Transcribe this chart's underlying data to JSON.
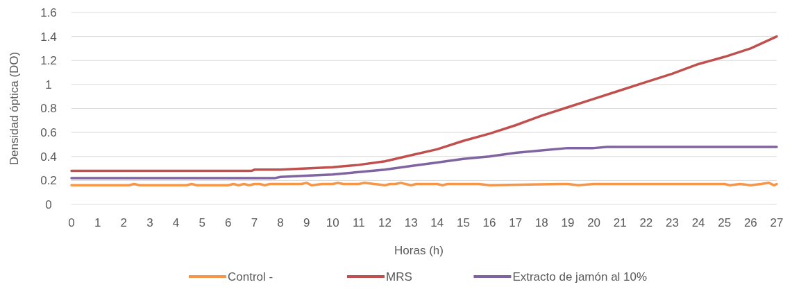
{
  "chart_data": {
    "type": "line",
    "xlabel": "Horas (h)",
    "ylabel": "Densidad óptica (DO)",
    "xlim": [
      0,
      27
    ],
    "xticks": [
      0,
      1,
      2,
      3,
      4,
      5,
      6,
      7,
      8,
      9,
      10,
      11,
      12,
      13,
      14,
      15,
      16,
      17,
      18,
      19,
      20,
      21,
      22,
      23,
      24,
      25,
      26,
      27
    ],
    "ylim": [
      0,
      1.6
    ],
    "yticks": [
      0,
      0.2,
      0.4,
      0.6,
      0.8,
      1,
      1.2,
      1.4,
      1.6
    ],
    "grid": "y",
    "legend": "bottom",
    "marker": "none",
    "line_style": "solid",
    "series": [
      {
        "name": "Control -",
        "color": "#f79646",
        "x": [
          0,
          2.2,
          2.4,
          2.6,
          4.4,
          4.6,
          4.8,
          6,
          6.2,
          6.4,
          6.6,
          6.8,
          7,
          7.2,
          7.4,
          7.6,
          8,
          8.8,
          9,
          9.2,
          9.6,
          10,
          10.2,
          10.4,
          11,
          11.2,
          11.6,
          12,
          12.2,
          12.4,
          12.6,
          13,
          13.2,
          13.5,
          14,
          14.2,
          14.4,
          15.4,
          15.6,
          16,
          18.8,
          19,
          19.4,
          20,
          20.2,
          24.8,
          25,
          25.2,
          25.6,
          26,
          26.4,
          26.7,
          26.9,
          27
        ],
        "values": [
          0.16,
          0.16,
          0.17,
          0.16,
          0.16,
          0.17,
          0.16,
          0.16,
          0.17,
          0.16,
          0.17,
          0.16,
          0.17,
          0.17,
          0.16,
          0.17,
          0.17,
          0.17,
          0.18,
          0.16,
          0.17,
          0.17,
          0.18,
          0.17,
          0.17,
          0.18,
          0.17,
          0.16,
          0.17,
          0.17,
          0.18,
          0.16,
          0.17,
          0.17,
          0.17,
          0.16,
          0.17,
          0.17,
          0.17,
          0.16,
          0.17,
          0.17,
          0.16,
          0.17,
          0.17,
          0.17,
          0.17,
          0.16,
          0.17,
          0.16,
          0.17,
          0.18,
          0.16,
          0.17
        ]
      },
      {
        "name": "MRS",
        "color": "#c0504d",
        "x": [
          0,
          6.9,
          7,
          8,
          9,
          10,
          11,
          12,
          13,
          14,
          15,
          16,
          17,
          18,
          19,
          20,
          21,
          22,
          23,
          24,
          25,
          26,
          27
        ],
        "values": [
          0.28,
          0.28,
          0.29,
          0.29,
          0.3,
          0.31,
          0.33,
          0.36,
          0.41,
          0.46,
          0.53,
          0.59,
          0.66,
          0.74,
          0.81,
          0.88,
          0.95,
          1.02,
          1.09,
          1.17,
          1.23,
          1.3,
          1.4
        ]
      },
      {
        "name": "Extracto de jamón al 10%",
        "color": "#8064a2",
        "x": [
          0,
          7.8,
          8,
          9,
          10,
          11,
          12,
          13,
          14,
          15,
          16,
          17,
          18,
          19,
          20,
          20.5,
          27
        ],
        "values": [
          0.22,
          0.22,
          0.23,
          0.24,
          0.25,
          0.27,
          0.29,
          0.32,
          0.35,
          0.38,
          0.4,
          0.43,
          0.45,
          0.47,
          0.47,
          0.48,
          0.48
        ]
      }
    ]
  }
}
